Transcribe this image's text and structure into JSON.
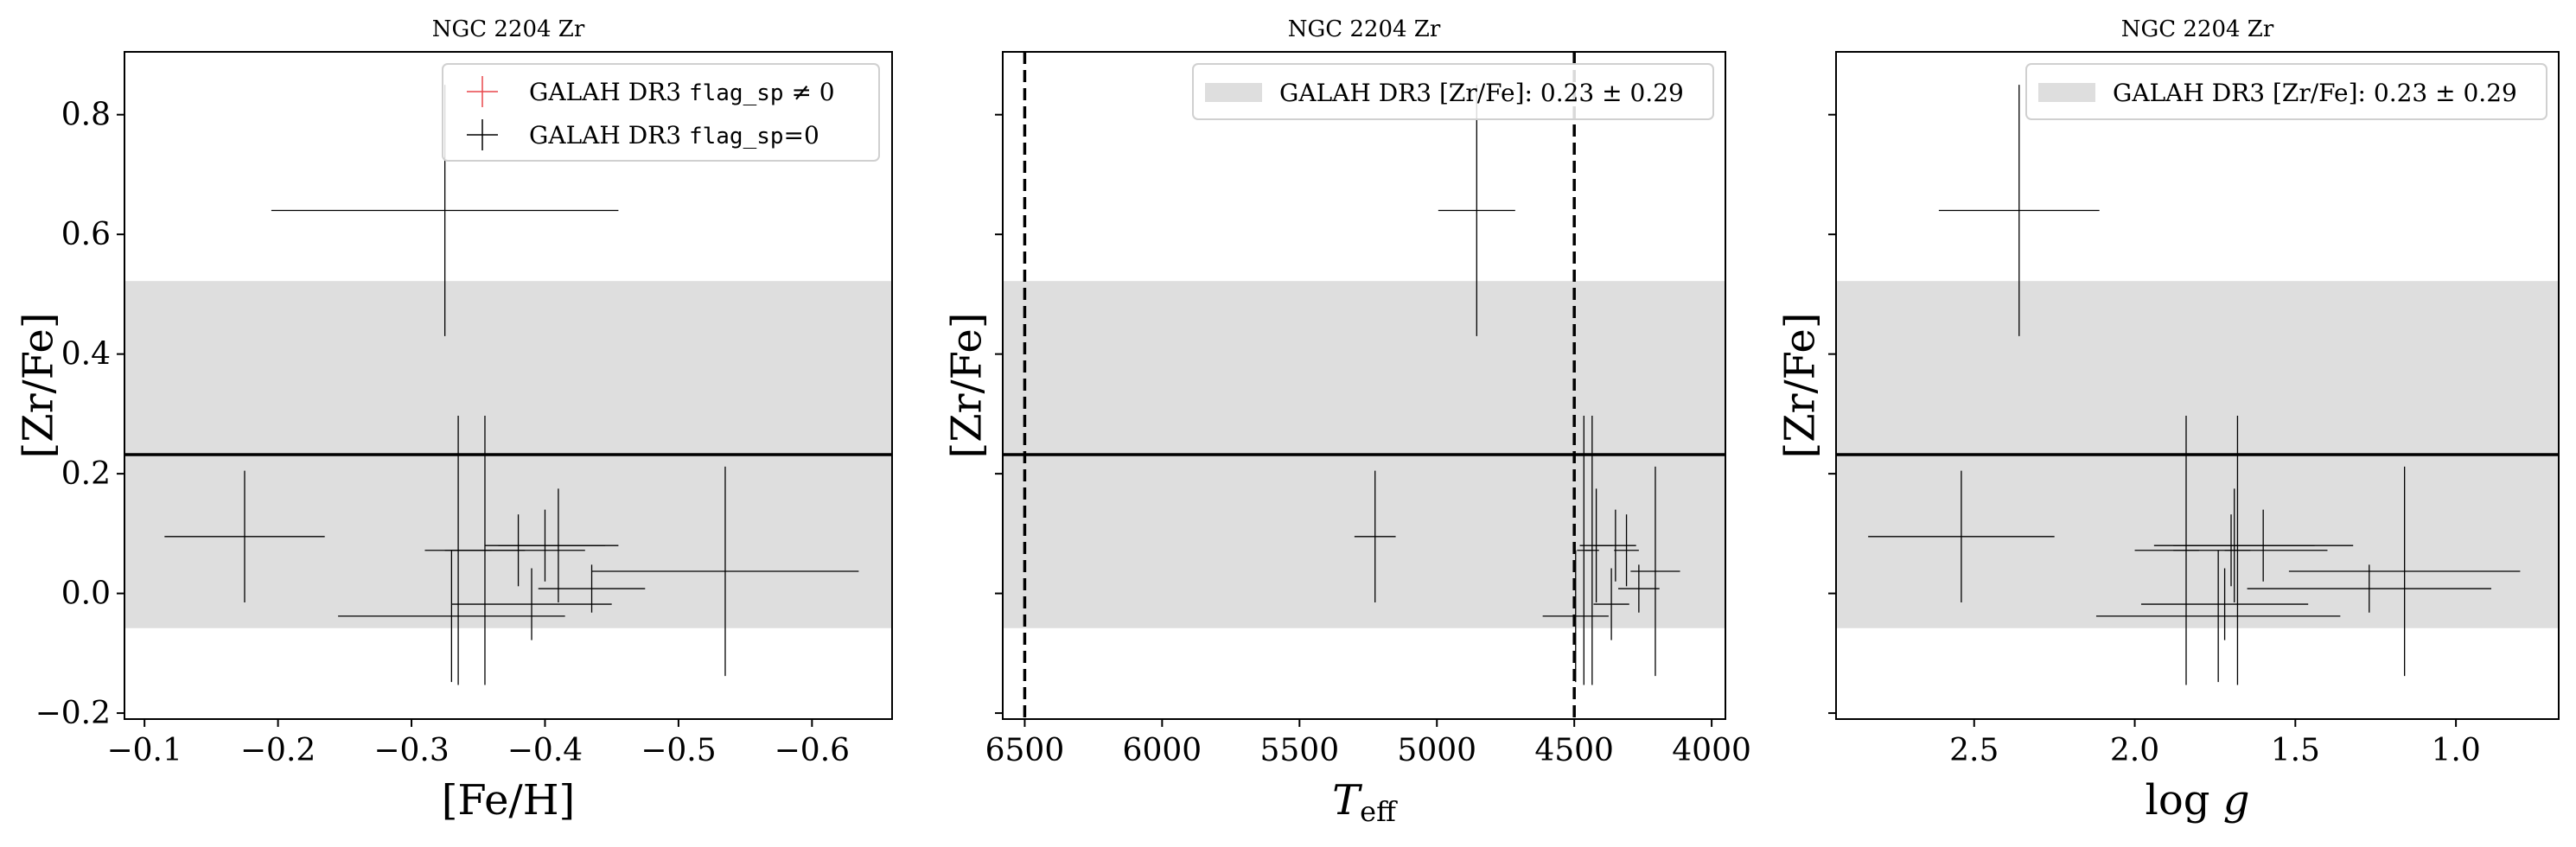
{
  "chart_data": [
    {
      "type": "scatter",
      "title": "NGC 2204 Zr",
      "xlabel": "[Fe/H]",
      "ylabel": "[Zr/Fe]",
      "xlim": [
        -0.085,
        -0.66
      ],
      "ylim": [
        -0.21,
        0.905
      ],
      "x_ticks": [
        -0.1,
        -0.2,
        -0.3,
        -0.4,
        -0.5,
        -0.6
      ],
      "x_tick_labels": [
        "−0.1",
        "−0.2",
        "−0.3",
        "−0.4",
        "−0.5",
        "−0.6"
      ],
      "y_ticks": [
        -0.2,
        0.0,
        0.2,
        0.4,
        0.6,
        0.8
      ],
      "y_tick_labels": [
        "−0.2",
        "0.0",
        "0.2",
        "0.4",
        "0.6",
        "0.8"
      ],
      "band": {
        "center": 0.232,
        "low": -0.058,
        "high": 0.522
      },
      "legend": {
        "placement": "top-right",
        "entries": [
          {
            "prefix": "GALAH DR3 ",
            "code": "flag_sp",
            "suffix": " ≠ 0",
            "color": "#e8474b"
          },
          {
            "prefix": "GALAH DR3 ",
            "code": "flag_sp",
            "suffix": "=0",
            "color": "#000000"
          }
        ]
      },
      "points": [
        {
          "x": -0.175,
          "y": 0.095,
          "xerr": 0.06,
          "yerr": 0.11
        },
        {
          "x": -0.325,
          "y": 0.64,
          "xerr": 0.13,
          "yerr": 0.21
        },
        {
          "x": -0.335,
          "y": 0.072,
          "xerr": 0.025,
          "yerr": 0.225
        },
        {
          "x": -0.355,
          "y": 0.072,
          "xerr": 0.03,
          "yerr": 0.225
        },
        {
          "x": -0.33,
          "y": -0.038,
          "xerr": 0.085,
          "yerr": 0.11
        },
        {
          "x": -0.38,
          "y": 0.072,
          "xerr": 0.05,
          "yerr": 0.06
        },
        {
          "x": -0.4,
          "y": 0.08,
          "xerr": 0.045,
          "yerr": 0.06
        },
        {
          "x": -0.41,
          "y": 0.08,
          "xerr": 0.045,
          "yerr": 0.095
        },
        {
          "x": -0.39,
          "y": -0.018,
          "xerr": 0.06,
          "yerr": 0.06
        },
        {
          "x": -0.435,
          "y": 0.008,
          "xerr": 0.04,
          "yerr": 0.04
        },
        {
          "x": -0.535,
          "y": 0.037,
          "xerr": 0.1,
          "yerr": 0.175
        }
      ]
    },
    {
      "type": "scatter",
      "title": "NGC 2204 Zr",
      "xlabel": "T_eff",
      "ylabel": "[Zr/Fe]",
      "xlim": [
        6580,
        3950
      ],
      "ylim": [
        -0.21,
        0.905
      ],
      "x_ticks": [
        6500,
        6000,
        5500,
        5000,
        4500,
        4000
      ],
      "x_tick_labels": [
        "6500",
        "6000",
        "5500",
        "5000",
        "4500",
        "4000"
      ],
      "y_ticks": [
        -0.2,
        0.0,
        0.2,
        0.4,
        0.6,
        0.8
      ],
      "band": {
        "center": 0.232,
        "low": -0.058,
        "high": 0.522
      },
      "vlines": [
        6500,
        4500
      ],
      "legend": {
        "placement": "top-right",
        "entries": [
          {
            "label": "GALAH DR3 [Zr/Fe]: 0.23 ± 0.29",
            "color": "#dedede"
          }
        ]
      },
      "points": [
        {
          "x": 5225,
          "y": 0.095,
          "xerr": 75,
          "yerr": 0.11
        },
        {
          "x": 4855,
          "y": 0.64,
          "xerr": 140,
          "yerr": 0.21
        },
        {
          "x": 4465,
          "y": 0.072,
          "xerr": 25,
          "yerr": 0.225
        },
        {
          "x": 4435,
          "y": 0.072,
          "xerr": 25,
          "yerr": 0.225
        },
        {
          "x": 4495,
          "y": -0.038,
          "xerr": 120,
          "yerr": 0.11
        },
        {
          "x": 4310,
          "y": 0.072,
          "xerr": 45,
          "yerr": 0.06
        },
        {
          "x": 4350,
          "y": 0.08,
          "xerr": 75,
          "yerr": 0.06
        },
        {
          "x": 4420,
          "y": 0.08,
          "xerr": 60,
          "yerr": 0.095
        },
        {
          "x": 4365,
          "y": -0.018,
          "xerr": 65,
          "yerr": 0.06
        },
        {
          "x": 4265,
          "y": 0.008,
          "xerr": 75,
          "yerr": 0.04
        },
        {
          "x": 4205,
          "y": 0.037,
          "xerr": 90,
          "yerr": 0.175
        }
      ]
    },
    {
      "type": "scatter",
      "title": "NGC 2204 Zr",
      "xlabel": "log g",
      "ylabel": "[Zr/Fe]",
      "xlim": [
        2.93,
        0.68
      ],
      "ylim": [
        -0.21,
        0.905
      ],
      "x_ticks": [
        2.5,
        2.0,
        1.5,
        1.0
      ],
      "x_tick_labels": [
        "2.5",
        "2.0",
        "1.5",
        "1.0"
      ],
      "y_ticks": [
        -0.2,
        0.0,
        0.2,
        0.4,
        0.6,
        0.8
      ],
      "band": {
        "center": 0.232,
        "low": -0.058,
        "high": 0.522
      },
      "legend": {
        "placement": "top-right",
        "entries": [
          {
            "label": "GALAH DR3 [Zr/Fe]: 0.23 ± 0.29",
            "color": "#dedede"
          }
        ]
      },
      "points": [
        {
          "x": 2.54,
          "y": 0.095,
          "xerr": 0.29,
          "yerr": 0.11
        },
        {
          "x": 2.36,
          "y": 0.64,
          "xerr": 0.25,
          "yerr": 0.21
        },
        {
          "x": 1.84,
          "y": 0.072,
          "xerr": 0.04,
          "yerr": 0.225
        },
        {
          "x": 1.68,
          "y": 0.072,
          "xerr": 0.04,
          "yerr": 0.225
        },
        {
          "x": 1.74,
          "y": -0.038,
          "xerr": 0.38,
          "yerr": 0.11
        },
        {
          "x": 1.7,
          "y": 0.072,
          "xerr": 0.3,
          "yerr": 0.06
        },
        {
          "x": 1.69,
          "y": 0.08,
          "xerr": 0.25,
          "yerr": 0.095
        },
        {
          "x": 1.6,
          "y": 0.08,
          "xerr": 0.28,
          "yerr": 0.06
        },
        {
          "x": 1.72,
          "y": -0.018,
          "xerr": 0.26,
          "yerr": 0.06
        },
        {
          "x": 1.27,
          "y": 0.008,
          "xerr": 0.38,
          "yerr": 0.04
        },
        {
          "x": 1.16,
          "y": 0.037,
          "xerr": 0.36,
          "yerr": 0.175
        }
      ]
    }
  ]
}
